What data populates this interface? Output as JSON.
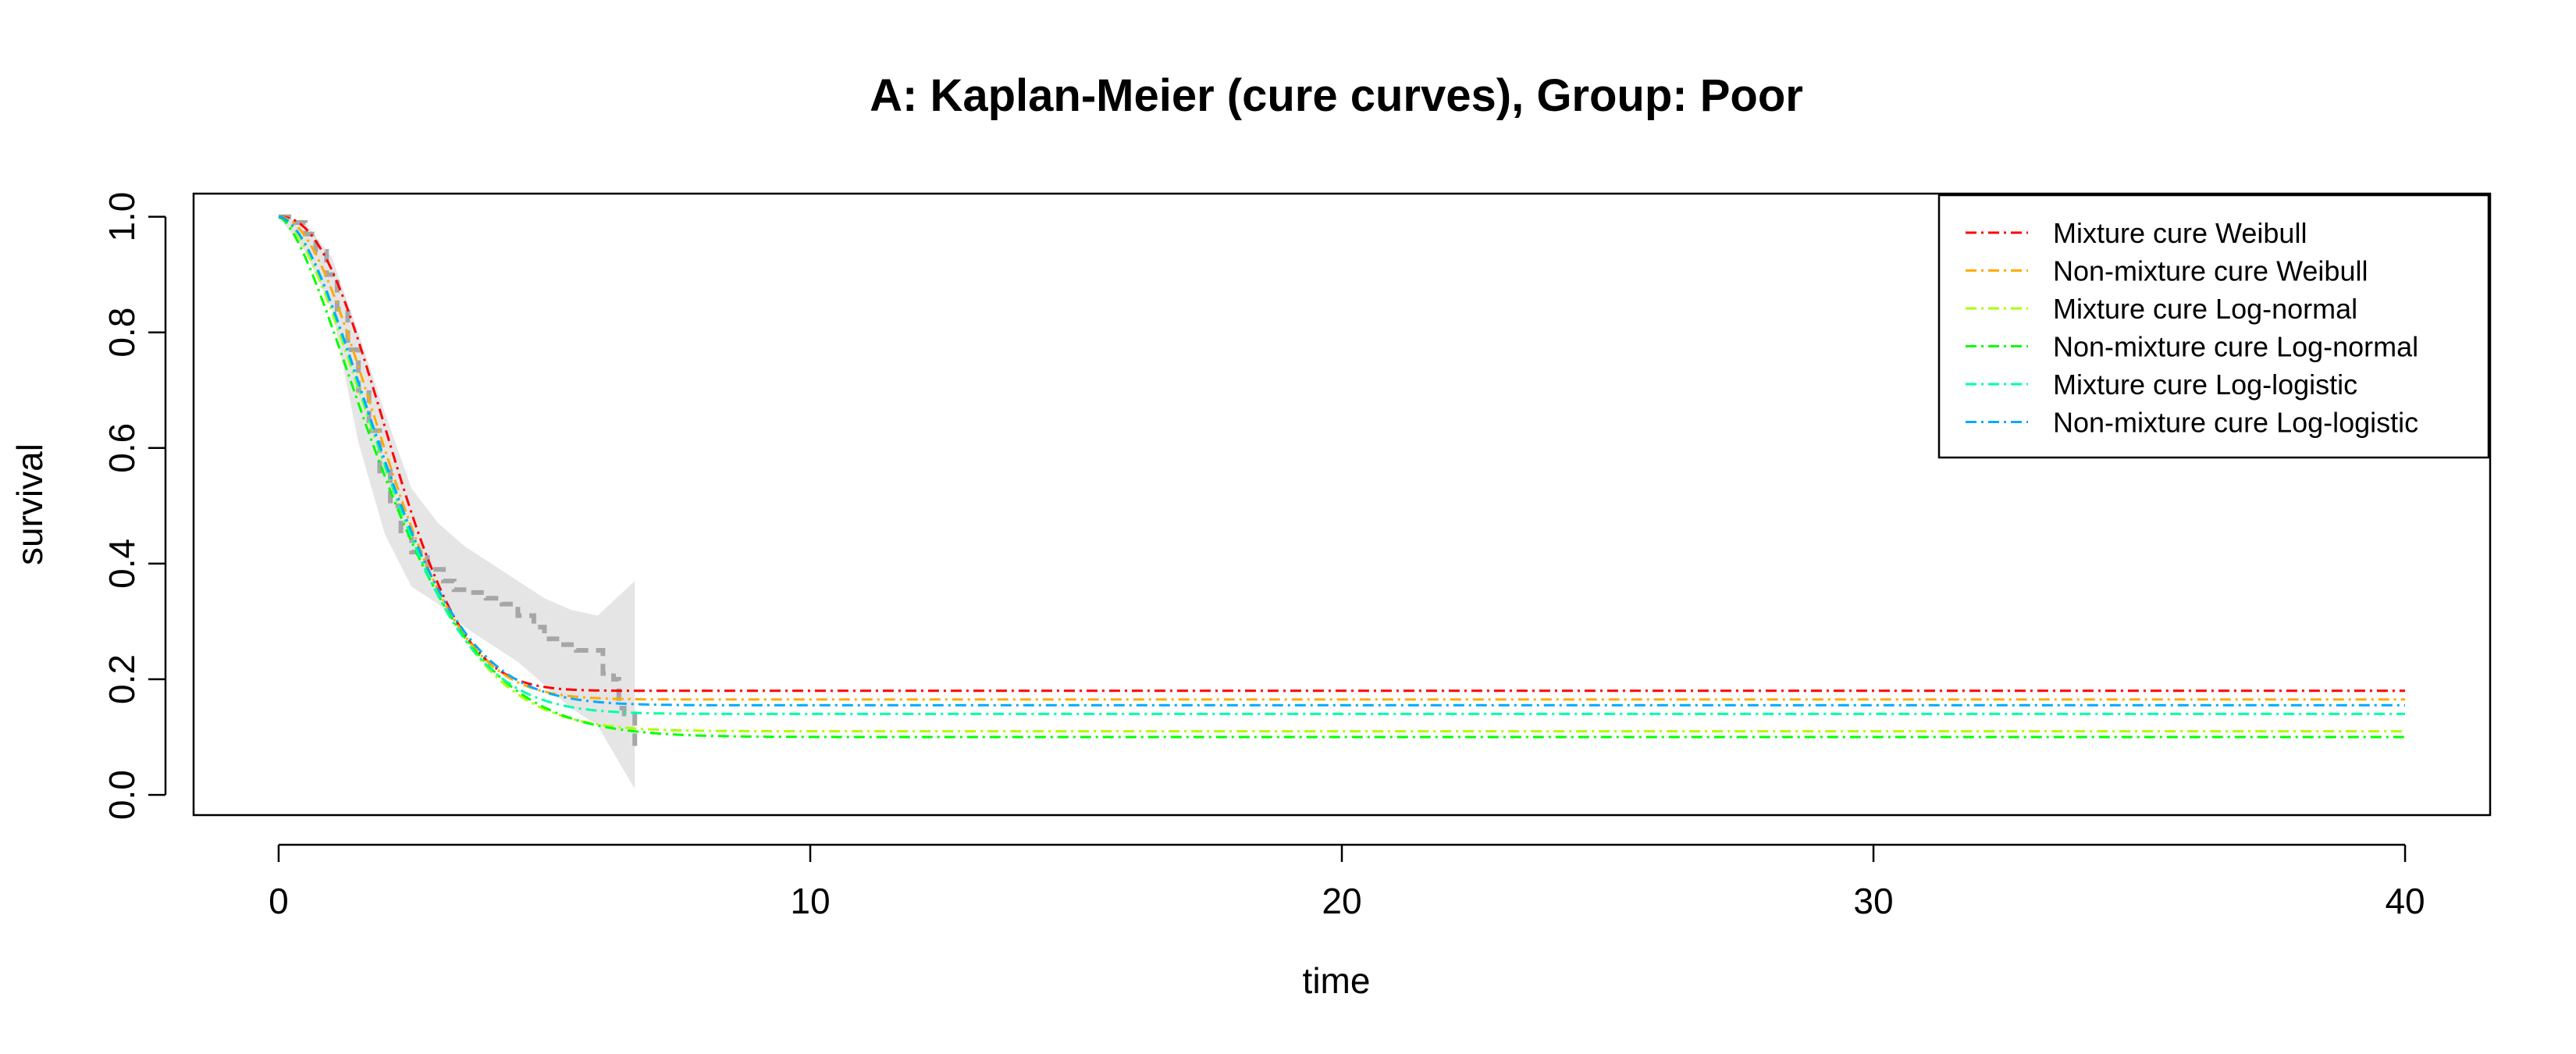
{
  "chart_data": {
    "type": "line",
    "title": "A: Kaplan-Meier (cure curves), Group: Poor",
    "xlabel": "time",
    "ylabel": "survival",
    "xlim": [
      -1.6,
      41.6
    ],
    "ylim": [
      -0.035,
      1.04
    ],
    "xticks": [
      0,
      10,
      20,
      30,
      40
    ],
    "xtick_labels": [
      "0",
      "10",
      "20",
      "30",
      "40"
    ],
    "yticks": [
      0.0,
      0.2,
      0.4,
      0.6,
      0.8,
      1.0
    ],
    "ytick_labels": [
      "0.0",
      "0.2",
      "0.4",
      "0.6",
      "0.8",
      "1.0"
    ],
    "grid": false,
    "legend_position": "top-right",
    "km": {
      "color": "#a6a6a6",
      "ci_color": "#e5e5e5",
      "steps": [
        [
          0,
          1.0
        ],
        [
          0.3,
          0.99
        ],
        [
          0.5,
          0.97
        ],
        [
          0.7,
          0.94
        ],
        [
          0.9,
          0.9
        ],
        [
          1.1,
          0.84
        ],
        [
          1.3,
          0.77
        ],
        [
          1.5,
          0.7
        ],
        [
          1.7,
          0.63
        ],
        [
          1.9,
          0.56
        ],
        [
          2.1,
          0.5
        ],
        [
          2.3,
          0.45
        ],
        [
          2.5,
          0.42
        ],
        [
          2.8,
          0.39
        ],
        [
          3.1,
          0.37
        ],
        [
          3.3,
          0.355
        ],
        [
          3.6,
          0.35
        ],
        [
          3.9,
          0.34
        ],
        [
          4.2,
          0.33
        ],
        [
          4.5,
          0.31
        ],
        [
          4.8,
          0.29
        ],
        [
          5.0,
          0.27
        ],
        [
          5.3,
          0.26
        ],
        [
          5.6,
          0.25
        ],
        [
          6.1,
          0.21
        ],
        [
          6.3,
          0.2
        ],
        [
          6.4,
          0.15
        ],
        [
          6.5,
          0.14
        ],
        [
          6.7,
          0.08
        ]
      ],
      "ci_upper": [
        [
          0,
          1.0
        ],
        [
          0.5,
          0.99
        ],
        [
          1.0,
          0.93
        ],
        [
          1.5,
          0.8
        ],
        [
          2.0,
          0.66
        ],
        [
          2.5,
          0.53
        ],
        [
          3.0,
          0.47
        ],
        [
          3.5,
          0.43
        ],
        [
          4.0,
          0.4
        ],
        [
          4.5,
          0.37
        ],
        [
          5.0,
          0.34
        ],
        [
          5.5,
          0.32
        ],
        [
          6.0,
          0.31
        ],
        [
          6.7,
          0.37
        ]
      ],
      "ci_lower": [
        [
          0,
          1.0
        ],
        [
          0.5,
          0.94
        ],
        [
          1.0,
          0.84
        ],
        [
          1.5,
          0.61
        ],
        [
          2.0,
          0.45
        ],
        [
          2.5,
          0.36
        ],
        [
          3.0,
          0.33
        ],
        [
          3.5,
          0.29
        ],
        [
          4.0,
          0.26
        ],
        [
          4.5,
          0.23
        ],
        [
          5.0,
          0.19
        ],
        [
          5.5,
          0.15
        ],
        [
          6.0,
          0.12
        ],
        [
          6.7,
          0.01
        ]
      ]
    },
    "series": [
      {
        "name": "Mixture cure Weibull",
        "color": "#ff0000",
        "cure": 0.18,
        "median": 2.15,
        "shape": 2.3
      },
      {
        "name": "Non-mixture cure Weibull",
        "color": "#ffaa00",
        "cure": 0.165,
        "median": 2.05,
        "shape": 2.0
      },
      {
        "name": "Mixture cure Log-normal",
        "color": "#aaff00",
        "cure": 0.11,
        "median": 2.05,
        "shape": 1.7
      },
      {
        "name": "Non-mixture cure Log-normal",
        "color": "#00ff00",
        "cure": 0.1,
        "median": 2.0,
        "shape": 1.55
      },
      {
        "name": "Mixture cure Log-logistic",
        "color": "#00ffaa",
        "cure": 0.14,
        "median": 2.0,
        "shape": 1.8
      },
      {
        "name": "Non-mixture cure Log-logistic",
        "color": "#00aaff",
        "cure": 0.155,
        "median": 2.0,
        "shape": 1.8
      }
    ]
  }
}
